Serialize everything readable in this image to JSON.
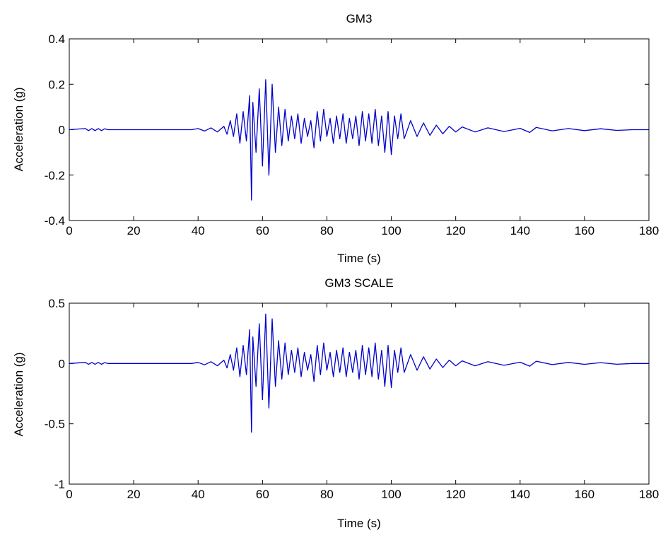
{
  "chart_data": [
    {
      "type": "line",
      "title": "GM3",
      "xlabel": "Time (s)",
      "ylabel": "Acceleration (g)",
      "xlim": [
        0,
        180
      ],
      "ylim": [
        -0.4,
        0.4
      ],
      "xticks": [
        "0",
        "20",
        "40",
        "60",
        "80",
        "100",
        "120",
        "140",
        "160",
        "180"
      ],
      "yticks": [
        "-0.4",
        "-0.2",
        "0",
        "0.2",
        "0.4"
      ],
      "grid": false,
      "line_color": "#0000cc",
      "series": [
        {
          "x": [
            0,
            5,
            6,
            7,
            8,
            9,
            10,
            11,
            12,
            13,
            20,
            30,
            38,
            40,
            42,
            44,
            46,
            48,
            49,
            50,
            51,
            52,
            53,
            54,
            55,
            56,
            56.6,
            57,
            58,
            59,
            60,
            61,
            62,
            63,
            64,
            65,
            66,
            67,
            68,
            69,
            70,
            71,
            72,
            73,
            74,
            75,
            76,
            77,
            78,
            79,
            80,
            81,
            82,
            83,
            84,
            85,
            86,
            87,
            88,
            89,
            90,
            91,
            92,
            93,
            94,
            95,
            96,
            97,
            98,
            99,
            100,
            101,
            102,
            103,
            104,
            106,
            108,
            110,
            112,
            114,
            116,
            118,
            120,
            122,
            126,
            130,
            135,
            140,
            143,
            145,
            150,
            155,
            160,
            165,
            170,
            175,
            180
          ],
          "y": [
            0.0,
            0.005,
            -0.004,
            0.005,
            -0.004,
            0.005,
            -0.004,
            0.004,
            0.0,
            0.0,
            0.0,
            0.0,
            0.0,
            0.005,
            -0.006,
            0.008,
            -0.01,
            0.015,
            -0.02,
            0.04,
            -0.03,
            0.07,
            -0.06,
            0.08,
            -0.05,
            0.15,
            -0.31,
            0.12,
            -0.1,
            0.18,
            -0.16,
            0.22,
            -0.2,
            0.2,
            -0.1,
            0.1,
            -0.07,
            0.09,
            -0.05,
            0.06,
            -0.04,
            0.07,
            -0.06,
            0.05,
            -0.03,
            0.04,
            -0.08,
            0.08,
            -0.05,
            0.09,
            -0.03,
            0.05,
            -0.06,
            0.06,
            -0.04,
            0.07,
            -0.06,
            0.05,
            -0.04,
            0.06,
            -0.07,
            0.08,
            -0.05,
            0.07,
            -0.06,
            0.09,
            -0.07,
            0.06,
            -0.1,
            0.08,
            -0.11,
            0.06,
            -0.04,
            0.07,
            -0.04,
            0.04,
            -0.03,
            0.03,
            -0.025,
            0.02,
            -0.018,
            0.015,
            -0.01,
            0.012,
            -0.01,
            0.008,
            -0.008,
            0.006,
            -0.012,
            0.01,
            -0.005,
            0.005,
            -0.004,
            0.004,
            -0.003,
            0.0,
            0.0
          ]
        }
      ]
    },
    {
      "type": "line",
      "title": "GM3 SCALE",
      "xlabel": "Time (s)",
      "ylabel": "Acceleration (g)",
      "xlim": [
        0,
        180
      ],
      "ylim": [
        -1,
        0.5
      ],
      "xticks": [
        "0",
        "20",
        "40",
        "60",
        "80",
        "100",
        "120",
        "140",
        "160",
        "180"
      ],
      "yticks": [
        "-1",
        "-0.5",
        "0",
        "0.5"
      ],
      "grid": false,
      "line_color": "#0000cc",
      "series": [
        {
          "x": [
            0,
            5,
            6,
            7,
            8,
            9,
            10,
            11,
            12,
            13,
            20,
            30,
            38,
            40,
            42,
            44,
            46,
            48,
            49,
            50,
            51,
            52,
            53,
            54,
            55,
            56,
            56.6,
            57,
            58,
            59,
            60,
            61,
            62,
            63,
            64,
            65,
            66,
            67,
            68,
            69,
            70,
            71,
            72,
            73,
            74,
            75,
            76,
            77,
            78,
            79,
            80,
            81,
            82,
            83,
            84,
            85,
            86,
            87,
            88,
            89,
            90,
            91,
            92,
            93,
            94,
            95,
            96,
            97,
            98,
            99,
            100,
            101,
            102,
            103,
            104,
            106,
            108,
            110,
            112,
            114,
            116,
            118,
            120,
            122,
            126,
            130,
            135,
            140,
            143,
            145,
            150,
            155,
            160,
            165,
            170,
            175,
            180
          ],
          "y": [
            0.0,
            0.009,
            -0.007,
            0.009,
            -0.007,
            0.009,
            -0.007,
            0.007,
            0.0,
            0.0,
            0.0,
            0.0,
            0.0,
            0.009,
            -0.011,
            0.015,
            -0.019,
            0.028,
            -0.037,
            0.074,
            -0.056,
            0.13,
            -0.11,
            0.15,
            -0.093,
            0.28,
            -0.57,
            0.22,
            -0.19,
            0.33,
            -0.3,
            0.41,
            -0.37,
            0.37,
            -0.19,
            0.19,
            -0.13,
            0.17,
            -0.093,
            0.11,
            -0.074,
            0.13,
            -0.11,
            0.093,
            -0.056,
            0.074,
            -0.15,
            0.15,
            -0.093,
            0.17,
            -0.056,
            0.093,
            -0.11,
            0.11,
            -0.074,
            0.13,
            -0.11,
            0.093,
            -0.074,
            0.11,
            -0.13,
            0.15,
            -0.093,
            0.13,
            -0.11,
            0.17,
            -0.13,
            0.11,
            -0.19,
            0.15,
            -0.2,
            0.11,
            -0.074,
            0.13,
            -0.074,
            0.074,
            -0.056,
            0.056,
            -0.046,
            0.037,
            -0.033,
            0.028,
            -0.019,
            0.022,
            -0.019,
            0.015,
            -0.015,
            0.011,
            -0.022,
            0.019,
            -0.009,
            0.009,
            -0.007,
            0.007,
            -0.006,
            0.0,
            0.0
          ]
        }
      ]
    }
  ]
}
